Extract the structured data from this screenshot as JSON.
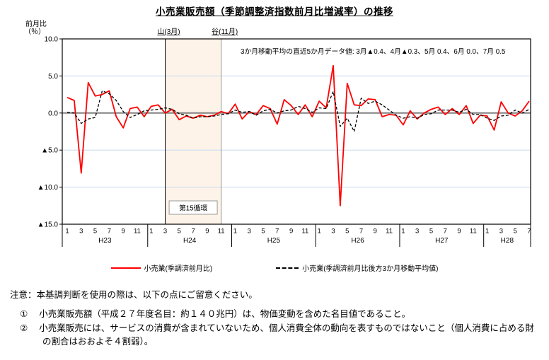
{
  "title": "小売業販売額（季節調整済指数前月比増減率）の推移",
  "colors": {
    "series_red": "#ff0000",
    "series_black": "#000000",
    "grid_blue": "#c6d9f1",
    "zero_line": "#808080",
    "plot_border": "#000000",
    "band_fill": "#fdf3e8",
    "trough_line": "#a6a6a6"
  },
  "chart_data": {
    "type": "line",
    "title": "小売業販売額（季節調整済指数前月比増減率）の推移",
    "ylabel_line1": "前月比",
    "ylabel_line2": "（％）",
    "ylim": [
      -15,
      10
    ],
    "grid": true,
    "yticks": [
      {
        "value": 10,
        "label": "10.0"
      },
      {
        "value": 5,
        "label": "5.0"
      },
      {
        "value": 0,
        "label": "0.0"
      },
      {
        "value": -5,
        "label": "▲5.0"
      },
      {
        "value": -10,
        "label": "▲10.0"
      },
      {
        "value": -15,
        "label": "▲15.0"
      }
    ],
    "years": [
      {
        "label": "H23",
        "months": [
          1,
          3,
          5,
          7,
          9,
          11
        ]
      },
      {
        "label": "H24",
        "months": [
          1,
          3,
          5,
          7,
          9,
          11
        ]
      },
      {
        "label": "H25",
        "months": [
          1,
          3,
          5,
          7,
          9,
          11
        ]
      },
      {
        "label": "H26",
        "months": [
          1,
          3,
          5,
          7,
          9,
          11
        ]
      },
      {
        "label": "H27",
        "months": [
          1,
          3,
          5,
          7,
          9,
          11
        ]
      },
      {
        "label": "H28",
        "months": [
          1,
          3,
          5,
          7
        ]
      }
    ],
    "peak_label": "山(3月)",
    "trough_label": "谷(11月)",
    "peak_index": 14,
    "trough_index": 22,
    "cycle_label": "第15循環",
    "annotation": "3か月移動平均の直近5か月データ値: 3月▲0.4、4月▲0.3、5月 0.4、6月 0.0、7月 0.5",
    "series": [
      {
        "name": "小売業(季調済前月比)",
        "style": "solid",
        "color": "#ff0000",
        "values": [
          2.1,
          1.7,
          -8.1,
          4.1,
          2.3,
          2.5,
          3.0,
          -0.5,
          -2.0,
          0.6,
          0.8,
          -0.5,
          0.9,
          1.1,
          0.0,
          0.5,
          -0.9,
          -0.4,
          -0.7,
          -0.3,
          -0.5,
          -0.3,
          0.2,
          -0.1,
          1.2,
          -0.8,
          0.2,
          -0.2,
          1.0,
          0.6,
          -1.5,
          1.8,
          1.0,
          -0.2,
          1.1,
          -0.5,
          1.6,
          0.7,
          6.4,
          -12.5,
          4.0,
          1.1,
          1.0,
          1.9,
          1.8,
          -0.5,
          -0.2,
          -0.3,
          -1.6,
          0.3,
          -0.8,
          0.0,
          0.5,
          0.8,
          -0.2,
          0.6,
          -0.2,
          1.0,
          -1.4,
          -0.3,
          -0.4,
          -2.3,
          1.5,
          0.0,
          -0.4,
          0.3,
          1.6
        ]
      },
      {
        "name": "小売業(季調済前月比後方3か月移動平均値)",
        "style": "dashed",
        "color": "#000000",
        "values": [
          0.1,
          0.0,
          -1.4,
          -0.8,
          -0.6,
          3.0,
          2.6,
          1.7,
          0.2,
          -0.6,
          -0.2,
          0.3,
          0.4,
          0.5,
          0.7,
          0.5,
          -0.1,
          -0.3,
          -0.7,
          -0.5,
          -0.5,
          -0.4,
          -0.2,
          -0.1,
          0.4,
          0.1,
          0.2,
          -0.3,
          0.3,
          0.5,
          0.0,
          0.3,
          0.4,
          0.9,
          0.6,
          0.1,
          0.7,
          0.6,
          2.9,
          -1.8,
          -0.7,
          -2.5,
          2.0,
          1.3,
          1.6,
          1.1,
          0.4,
          -0.3,
          -0.7,
          -0.5,
          -0.7,
          -0.2,
          -0.1,
          0.4,
          0.4,
          0.4,
          0.1,
          0.5,
          -0.2,
          -0.2,
          -0.7,
          -1.0,
          -0.4,
          -0.3,
          0.4,
          0.0,
          0.5
        ]
      }
    ]
  },
  "notes": {
    "notice": "注意：本基調判断を使用の際は、以下の点にご留意ください。",
    "items": [
      {
        "marker": "①",
        "text": "小売業販売額（平成２７年度名目：約１４０兆円）は、物価変動を含めた名目値であること。"
      },
      {
        "marker": "②",
        "text": "小売業販売には、サービスの消費が含まれていないため、個人消費全体の動向を表すものではないこと（個人消費に占める財の割合はおおよそ４割弱）。"
      }
    ]
  }
}
